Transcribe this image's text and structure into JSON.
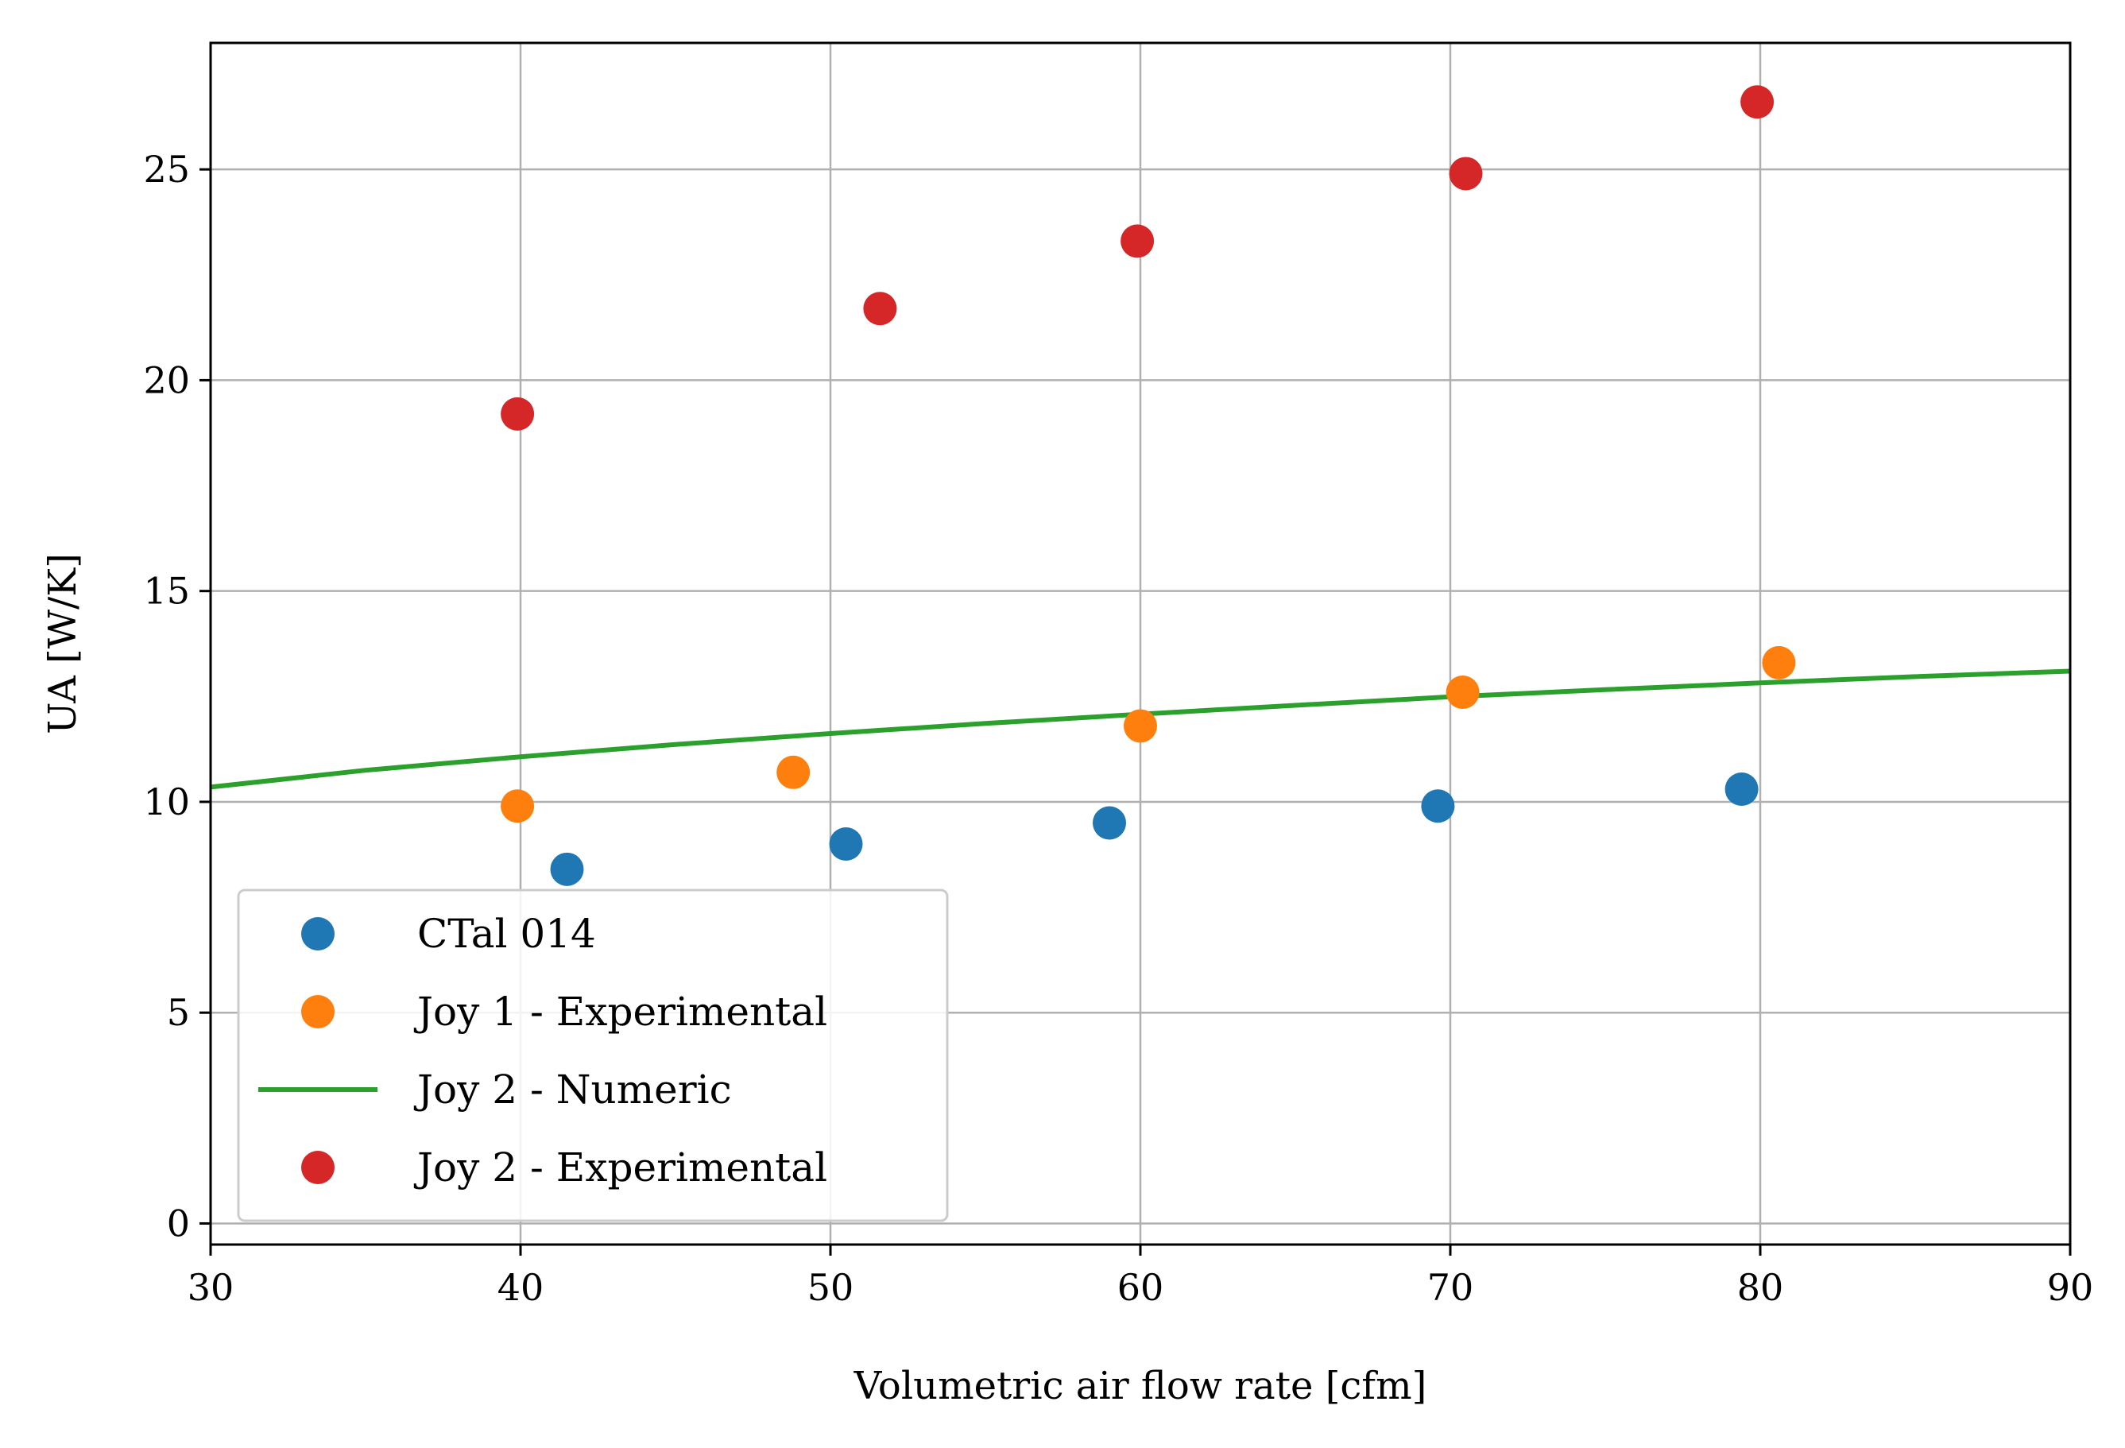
{
  "chart_data": {
    "type": "scatter",
    "xlabel": "Volumetric air flow rate [cfm]",
    "ylabel": "UA [W/K]",
    "xlim": [
      30,
      90
    ],
    "ylim": [
      -0.5,
      28
    ],
    "xticks": [
      30,
      40,
      50,
      60,
      70,
      80,
      90
    ],
    "yticks": [
      0,
      5,
      10,
      15,
      20,
      25
    ],
    "grid": true,
    "legend_position": "lower-left",
    "series": [
      {
        "name": "CTal 014",
        "type": "scatter",
        "color": "#1f77b4",
        "points": [
          [
            41.5,
            8.4
          ],
          [
            50.5,
            9.0
          ],
          [
            59.0,
            9.5
          ],
          [
            69.6,
            9.9
          ],
          [
            79.4,
            10.3
          ]
        ]
      },
      {
        "name": "Joy 1 - Experimental",
        "type": "scatter",
        "color": "#ff7f0e",
        "points": [
          [
            39.9,
            9.9
          ],
          [
            48.8,
            10.7
          ],
          [
            60.0,
            11.8
          ],
          [
            70.4,
            12.6
          ],
          [
            80.6,
            13.3
          ]
        ]
      },
      {
        "name": "Joy 2 - Numeric",
        "type": "line",
        "color": "#2ca02c",
        "points": [
          [
            30,
            10.35
          ],
          [
            35,
            10.75
          ],
          [
            40,
            11.07
          ],
          [
            45,
            11.36
          ],
          [
            50,
            11.62
          ],
          [
            55,
            11.86
          ],
          [
            60,
            12.08
          ],
          [
            65,
            12.29
          ],
          [
            70,
            12.49
          ],
          [
            75,
            12.66
          ],
          [
            80,
            12.82
          ],
          [
            85,
            12.97
          ],
          [
            90,
            13.1
          ]
        ]
      },
      {
        "name": "Joy 2 - Experimental",
        "type": "scatter",
        "color": "#d62728",
        "points": [
          [
            39.9,
            19.2
          ],
          [
            51.6,
            21.7
          ],
          [
            59.9,
            23.3
          ],
          [
            70.5,
            24.9
          ],
          [
            79.9,
            26.6
          ]
        ]
      }
    ]
  }
}
